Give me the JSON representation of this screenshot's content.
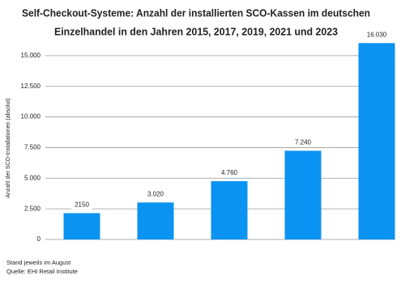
{
  "chart_data": {
    "type": "bar",
    "title": [
      "Self-Checkout-Systeme: Anzahl der installierten SCO-Kassen im deutschen",
      "Einzelhandel in den Jahren 2015, 2017, 2019, 2021 und 2023"
    ],
    "y_label": "Anzahl der SCO-Installationen (absolut)",
    "values": [
      2150,
      3020,
      4760,
      7240,
      16030
    ],
    "value_labels": [
      "2150",
      "3.020",
      "4.760",
      "7.240",
      "16.030"
    ],
    "color": "#0b93f2",
    "ylim": [
      0,
      17500
    ],
    "yticks": [
      0,
      {
        "value": 2500,
        "label": "2.500"
      },
      {
        "value": 5000,
        "label": "5.000"
      },
      {
        "value": 7500,
        "label": "7.500"
      },
      {
        "value": 10000,
        "label": "10.000"
      },
      {
        "value": 12500,
        "label": "12.500"
      },
      {
        "value": 15000,
        "label": "15.000"
      }
    ],
    "grid": true,
    "notes": [
      "Stand jeweils im August",
      "Quelle: EHI Retail Institute"
    ]
  }
}
